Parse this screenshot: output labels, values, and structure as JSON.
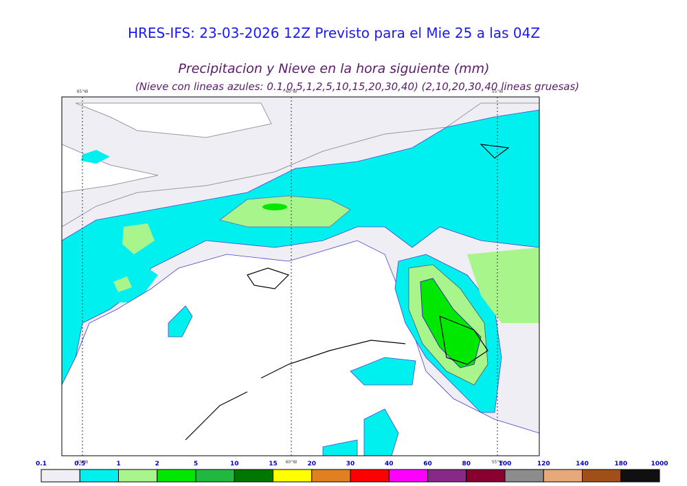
{
  "header": {
    "title": "HRES-IFS: 23-03-2026 12Z Previsto para el Mie 25 a las 04Z",
    "subtitle": "Precipitacion y Nieve en la hora siguiente (mm)",
    "note": "(Nieve con lineas azules: 0.1,0.5,1,2,5,10,15,20,30,40)  (2,10,20,30,40 lineas gruesas)"
  },
  "map": {
    "lon_labels": [
      "65°W",
      "60°W",
      "55°W"
    ]
  },
  "colorbar": {
    "levels": [
      0.1,
      0.5,
      1,
      2,
      5,
      10,
      15,
      20,
      30,
      40,
      60,
      80,
      100,
      120,
      140,
      180,
      1000
    ],
    "colors": [
      "#eeeef4",
      "#00f0f0",
      "#a8f58c",
      "#00e800",
      "#22b840",
      "#007800",
      "#ffff00",
      "#e08020",
      "#ff0000",
      "#ff00ff",
      "#882888",
      "#880030",
      "#8c8c8c",
      "#e8a878",
      "#a05018",
      "#101010"
    ]
  }
}
